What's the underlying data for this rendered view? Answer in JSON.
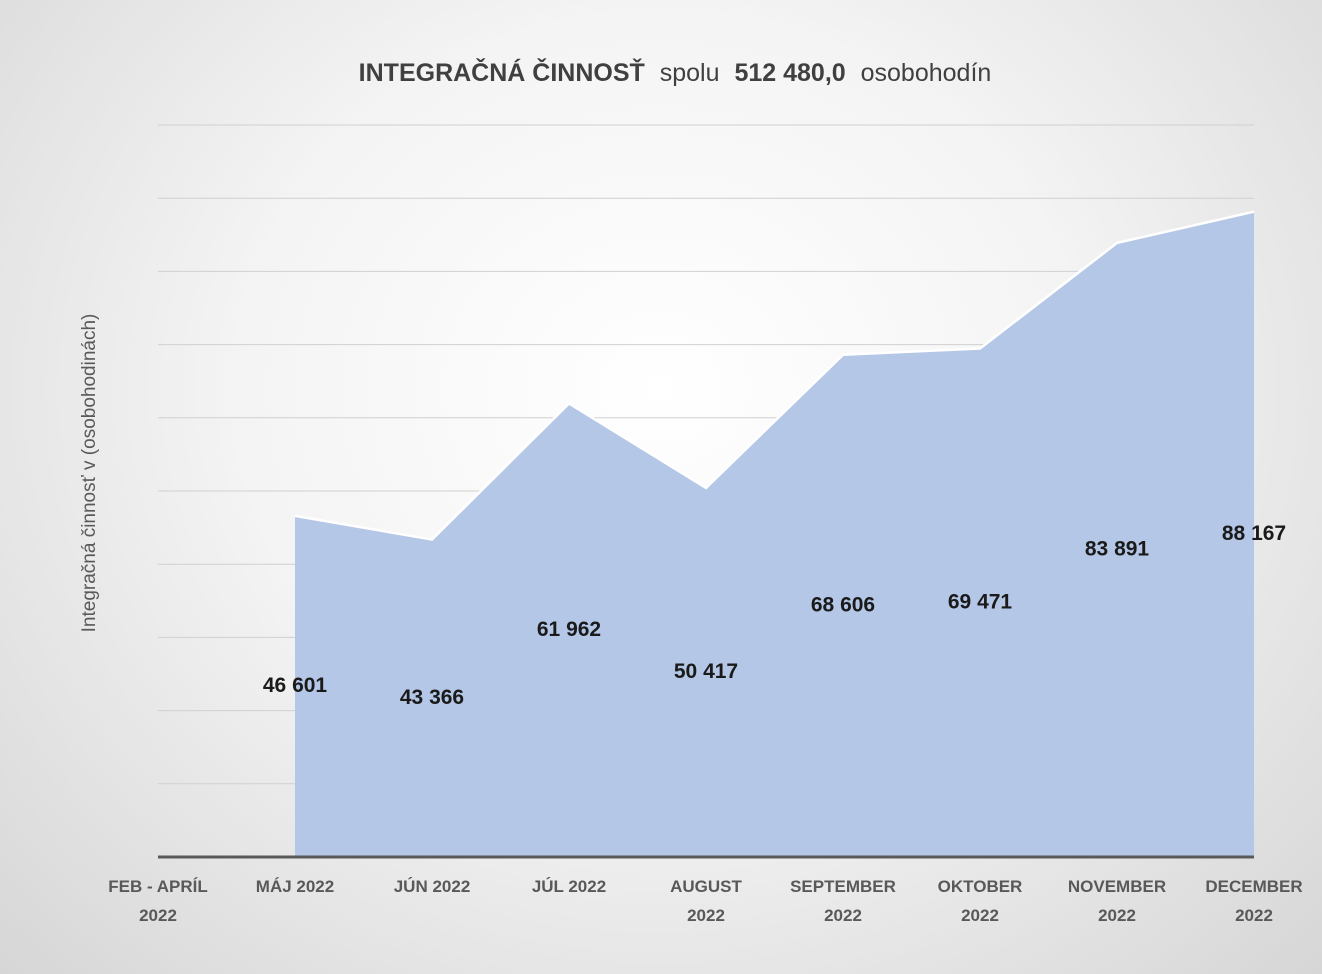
{
  "chart_data": {
    "type": "area",
    "title": [
      "INTEGRAČNÁ  ČINNOSŤ",
      "spolu",
      "512 480,0",
      "osobohodín"
    ],
    "y_axis_label": "Integračná činnosť v (osobohodinách)",
    "categories": [
      "FEB - APRÍL\n2022",
      "MÁJ 2022",
      "JÚN 2022",
      "JÚL 2022",
      "AUGUST\n2022",
      "SEPTEMBER\n2022",
      "OKTOBER\n2022",
      "NOVEMBER\n2022",
      "DECEMBER\n2022"
    ],
    "values": [
      null,
      46601,
      43366,
      61962,
      50417,
      68606,
      69471,
      83891,
      88167
    ],
    "value_labels": [
      null,
      "46 601",
      "43 366",
      "61 962",
      "50 417",
      "68 606",
      "69 471",
      "83 891",
      "88 167"
    ],
    "color": "#b4c7e7",
    "ylim": [
      0,
      100000
    ],
    "yticks": [
      0,
      10000,
      20000,
      30000,
      40000,
      50000,
      60000,
      70000,
      80000,
      90000,
      100000
    ],
    "grid": true
  }
}
